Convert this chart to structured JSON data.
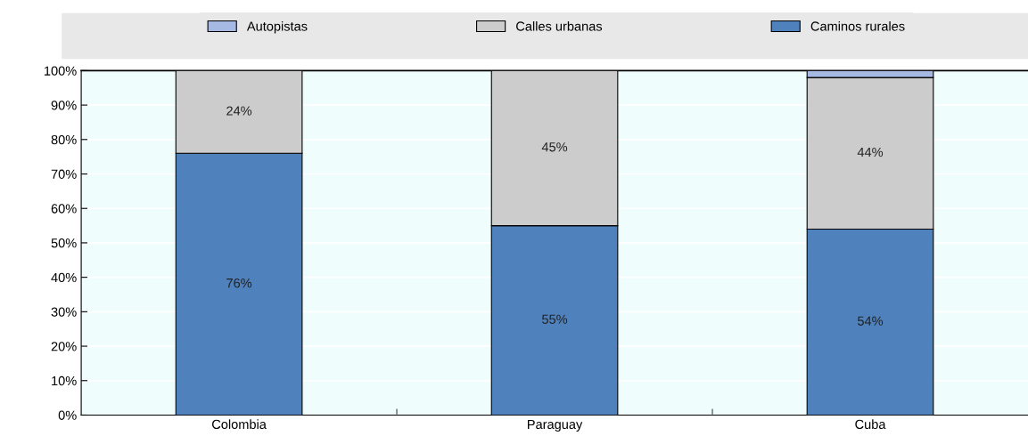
{
  "chart_data": {
    "type": "bar",
    "stacked": true,
    "categories": [
      "Colombia",
      "Paraguay",
      "Cuba"
    ],
    "series": [
      {
        "name": "Caminos rurales",
        "color": "#4f81bd",
        "values": [
          76,
          55,
          54
        ],
        "value_labels": [
          "76%",
          "55%",
          "54%"
        ]
      },
      {
        "name": "Calles urbanas",
        "color": "#cccccc",
        "values": [
          24,
          45,
          44
        ],
        "value_labels": [
          "24%",
          "45%",
          "44%"
        ]
      },
      {
        "name": "Autopistas",
        "color": "#a6b9e3",
        "values": [
          null,
          null,
          2
        ],
        "value_labels": [
          null,
          null,
          null
        ]
      }
    ],
    "ylim": [
      0,
      100
    ],
    "yticks": [
      {
        "value": 0,
        "label": "0%"
      },
      {
        "value": 10,
        "label": "10%"
      },
      {
        "value": 20,
        "label": "20%"
      },
      {
        "value": 30,
        "label": "30%"
      },
      {
        "value": 40,
        "label": "40%"
      },
      {
        "value": 50,
        "label": "50%"
      },
      {
        "value": 60,
        "label": "60%"
      },
      {
        "value": 70,
        "label": "70%"
      },
      {
        "value": 80,
        "label": "80%"
      },
      {
        "value": 90,
        "label": "90%"
      },
      {
        "value": 100,
        "label": "100%"
      }
    ],
    "grid": "y",
    "legend": "top"
  }
}
